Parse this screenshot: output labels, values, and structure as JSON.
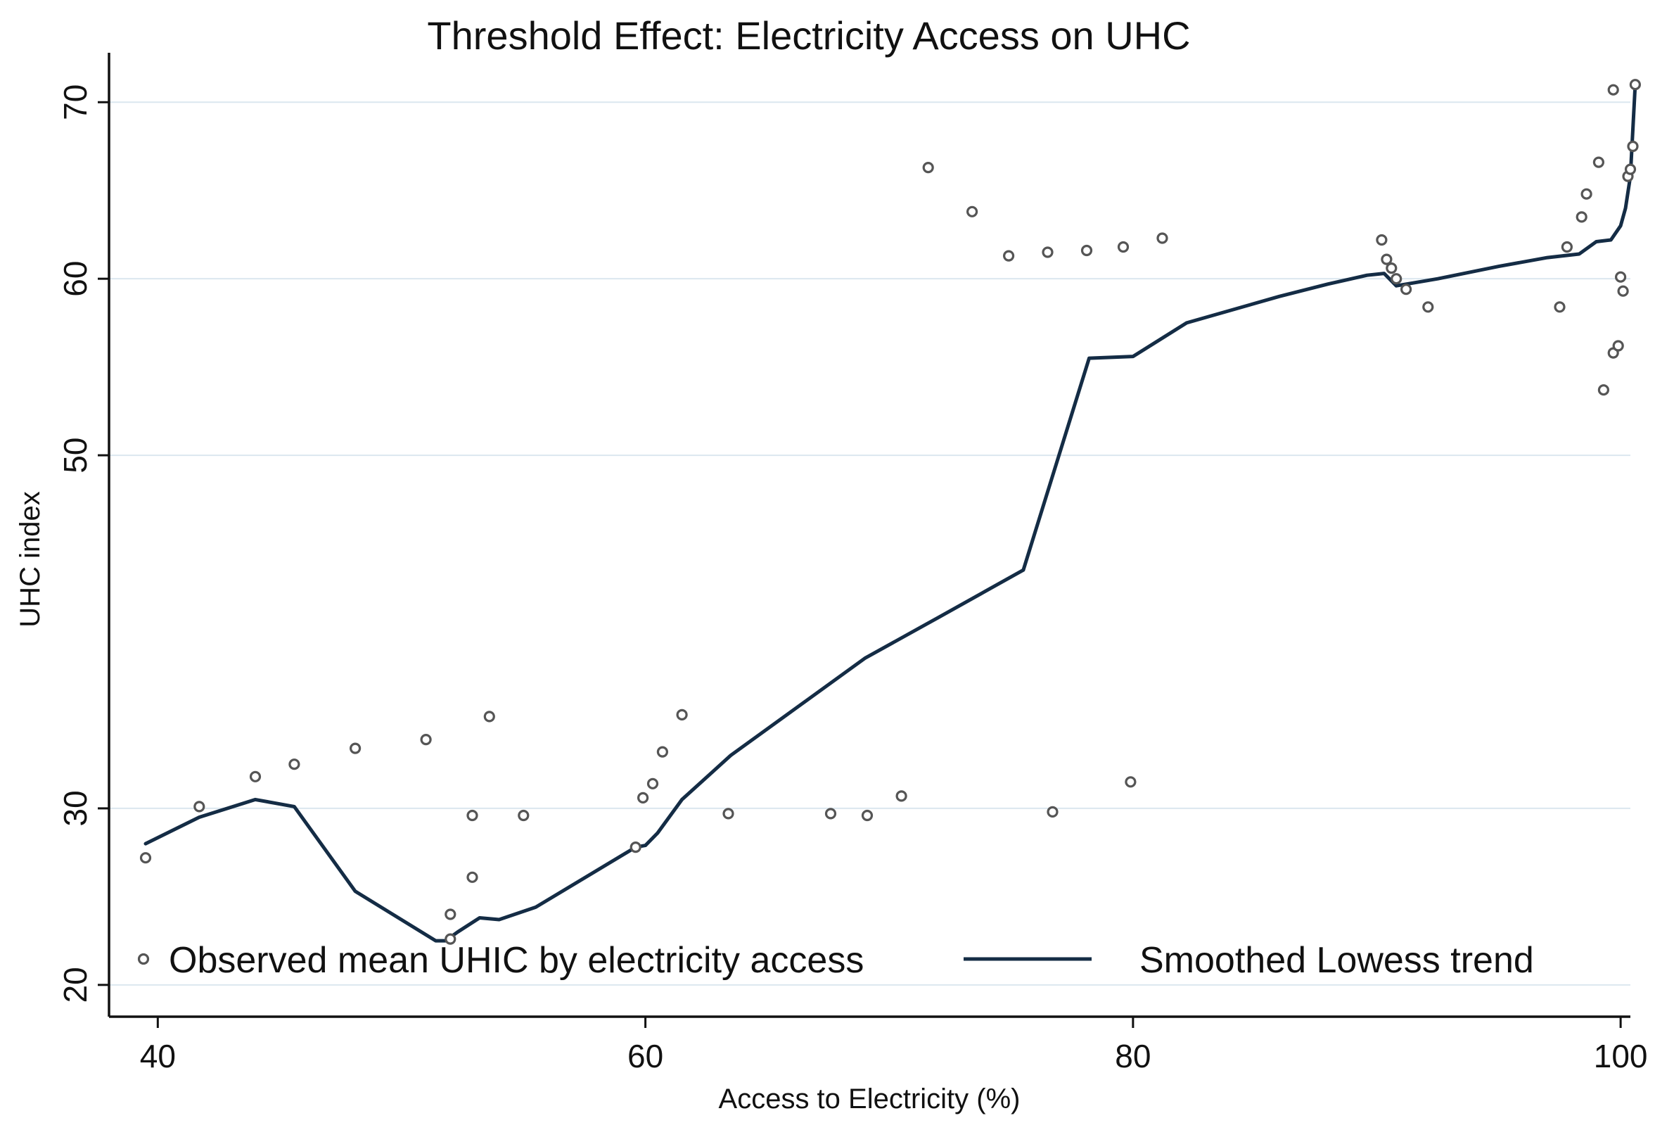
{
  "chart_data": {
    "type": "scatter",
    "title": "Threshold Effect: Electricity Access on UHC",
    "xlabel": "Access to Electricity (%)",
    "ylabel": "UHC index",
    "xlim": [
      38,
      100.4
    ],
    "ylim": [
      18.2,
      72.8
    ],
    "x_ticks": [
      40,
      60,
      80,
      100
    ],
    "x_tick_labels": [
      "40",
      "60",
      "80",
      "100"
    ],
    "y_ticks": [
      20,
      30,
      50,
      60,
      70
    ],
    "y_tick_labels": [
      "20",
      "30",
      "50",
      "60",
      "70"
    ],
    "grid": true,
    "legend_position": "bottom",
    "series": [
      {
        "name": "Observed mean UHIC by electricity access",
        "kind": "scatter",
        "marker": "hollow-circle",
        "color": "#555555",
        "points": [
          [
            39.5,
            27.2
          ],
          [
            41.7,
            30.1
          ],
          [
            44.0,
            31.8
          ],
          [
            45.6,
            32.5
          ],
          [
            48.1,
            33.4
          ],
          [
            51.0,
            33.9
          ],
          [
            52.0,
            24.0
          ],
          [
            52.0,
            22.6
          ],
          [
            52.9,
            29.6
          ],
          [
            52.9,
            26.1
          ],
          [
            53.6,
            35.2
          ],
          [
            55.0,
            29.6
          ],
          [
            59.6,
            27.8
          ],
          [
            59.9,
            30.6
          ],
          [
            60.3,
            31.4
          ],
          [
            60.7,
            33.2
          ],
          [
            61.5,
            35.3
          ],
          [
            63.4,
            29.7
          ],
          [
            67.6,
            29.7
          ],
          [
            69.1,
            29.6
          ],
          [
            70.5,
            30.7
          ],
          [
            71.6,
            66.3
          ],
          [
            73.4,
            63.8
          ],
          [
            74.9,
            61.3
          ],
          [
            76.5,
            61.5
          ],
          [
            76.7,
            29.8
          ],
          [
            78.1,
            61.6
          ],
          [
            79.6,
            61.8
          ],
          [
            79.9,
            31.5
          ],
          [
            81.2,
            62.3
          ],
          [
            90.2,
            62.2
          ],
          [
            90.4,
            61.1
          ],
          [
            90.6,
            60.6
          ],
          [
            90.8,
            60.0
          ],
          [
            91.2,
            59.4
          ],
          [
            92.1,
            58.4
          ],
          [
            97.5,
            58.4
          ],
          [
            97.8,
            61.8
          ],
          [
            98.4,
            63.5
          ],
          [
            98.6,
            64.8
          ],
          [
            99.1,
            66.6
          ],
          [
            99.3,
            53.7
          ],
          [
            99.7,
            55.8
          ],
          [
            99.9,
            56.2
          ],
          [
            100.0,
            60.1
          ],
          [
            100.1,
            59.3
          ],
          [
            100.3,
            65.8
          ],
          [
            100.4,
            66.2
          ],
          [
            100.5,
            67.5
          ],
          [
            100.6,
            71.0
          ],
          [
            99.7,
            70.7
          ]
        ]
      },
      {
        "name": "Smoothed Lowess trend",
        "kind": "line",
        "color": "#142c45",
        "points": [
          [
            39.5,
            28.0
          ],
          [
            41.7,
            29.5
          ],
          [
            44.0,
            30.5
          ],
          [
            45.6,
            30.1
          ],
          [
            48.1,
            25.3
          ],
          [
            51.4,
            22.5
          ],
          [
            51.8,
            22.5
          ],
          [
            52.3,
            23.0
          ],
          [
            53.2,
            23.8
          ],
          [
            54.0,
            23.7
          ],
          [
            55.5,
            24.4
          ],
          [
            59.6,
            27.8
          ],
          [
            60.0,
            27.9
          ],
          [
            60.5,
            28.6
          ],
          [
            61.5,
            30.5
          ],
          [
            63.5,
            33.0
          ],
          [
            66.0,
            35.5
          ],
          [
            69.0,
            38.5
          ],
          [
            72.0,
            40.8
          ],
          [
            75.5,
            43.5
          ],
          [
            78.2,
            55.5
          ],
          [
            80.0,
            55.6
          ],
          [
            82.2,
            57.5
          ],
          [
            86.0,
            59.0
          ],
          [
            88.0,
            59.7
          ],
          [
            89.6,
            60.2
          ],
          [
            90.3,
            60.3
          ],
          [
            90.8,
            59.6
          ],
          [
            92.5,
            60.0
          ],
          [
            95.0,
            60.7
          ],
          [
            97.0,
            61.2
          ],
          [
            98.3,
            61.4
          ],
          [
            99.0,
            62.1
          ],
          [
            99.6,
            62.2
          ],
          [
            100.0,
            63.0
          ],
          [
            100.2,
            64.0
          ],
          [
            100.4,
            65.8
          ],
          [
            100.6,
            71.0
          ]
        ]
      }
    ]
  }
}
